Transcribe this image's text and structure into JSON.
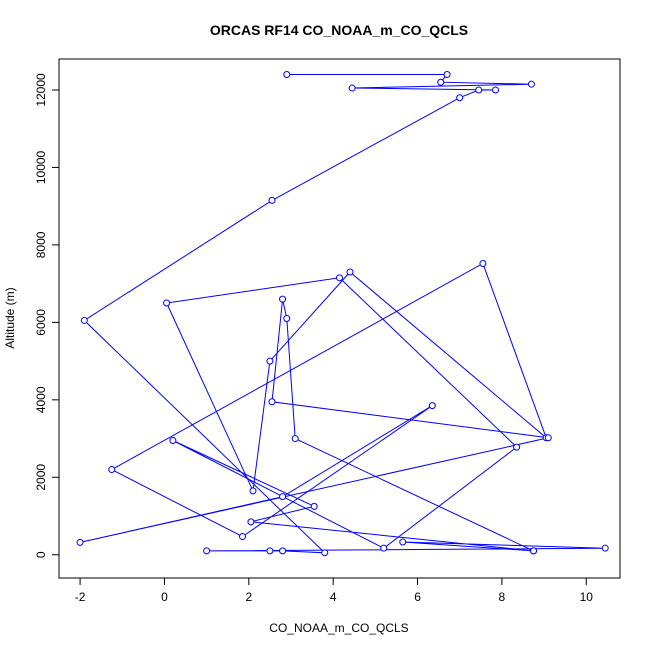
{
  "chart_data": {
    "type": "line",
    "title": "ORCAS RF14 CO_NOAA_m_CO_QCLS",
    "xlabel": "CO_NOAA_m_CO_QCLS",
    "ylabel": "Altitude (m)",
    "xlim": [
      -2.5,
      10.8
    ],
    "ylim": [
      -600,
      12800
    ],
    "xticks": [
      -2,
      0,
      2,
      4,
      6,
      8,
      10
    ],
    "xtick_labels": [
      "-2",
      "0",
      "2",
      "4",
      "6",
      "8",
      "10"
    ],
    "yticks": [
      0,
      2000,
      4000,
      6000,
      8000,
      10000,
      12000
    ],
    "ytick_labels": [
      "0",
      "2000",
      "4000",
      "6000",
      "8000",
      "10000",
      "12000"
    ],
    "grid": false,
    "colors": {
      "series": "#0000ff",
      "frame": "#000000",
      "background": "#ffffff"
    },
    "series": [
      {
        "marker": "open-circle",
        "points": [
          {
            "x": 2.9,
            "y": 12400
          },
          {
            "x": 6.7,
            "y": 12400
          },
          {
            "x": 6.55,
            "y": 12200
          },
          {
            "x": 8.7,
            "y": 12150
          },
          {
            "x": 4.45,
            "y": 12050
          },
          {
            "x": 7.85,
            "y": 12000
          },
          {
            "x": 7.45,
            "y": 12000
          },
          {
            "x": 7.0,
            "y": 11800
          },
          {
            "x": 2.55,
            "y": 9150
          },
          {
            "x": -1.9,
            "y": 6050
          },
          {
            "x": 3.8,
            "y": 50
          },
          {
            "x": 2.8,
            "y": 100
          },
          {
            "x": 2.5,
            "y": 100
          },
          {
            "x": 1.0,
            "y": 100
          },
          {
            "x": 10.45,
            "y": 170
          },
          {
            "x": 5.65,
            "y": 330
          },
          {
            "x": 8.75,
            "y": 100
          },
          {
            "x": 2.05,
            "y": 850
          },
          {
            "x": 3.55,
            "y": 1250
          },
          {
            "x": 0.2,
            "y": 2950
          },
          {
            "x": 5.2,
            "y": 170
          },
          {
            "x": 8.35,
            "y": 2780
          },
          {
            "x": 4.15,
            "y": 7150
          },
          {
            "x": 0.05,
            "y": 6500
          },
          {
            "x": 2.1,
            "y": 1650
          },
          {
            "x": 2.5,
            "y": 5000
          },
          {
            "x": 4.4,
            "y": 7300
          },
          {
            "x": 9.05,
            "y": 3020
          },
          {
            "x": 7.55,
            "y": 7520
          },
          {
            "x": -1.25,
            "y": 2200
          },
          {
            "x": 1.85,
            "y": 470
          },
          {
            "x": 6.35,
            "y": 3850
          },
          {
            "x": 2.8,
            "y": 1500
          },
          {
            "x": -2.0,
            "y": 320
          },
          {
            "x": 9.1,
            "y": 3020
          },
          {
            "x": 2.55,
            "y": 3950
          },
          {
            "x": 2.8,
            "y": 6600
          },
          {
            "x": 2.9,
            "y": 6100
          },
          {
            "x": 3.1,
            "y": 3000
          },
          {
            "x": 8.75,
            "y": 100
          }
        ]
      }
    ]
  }
}
